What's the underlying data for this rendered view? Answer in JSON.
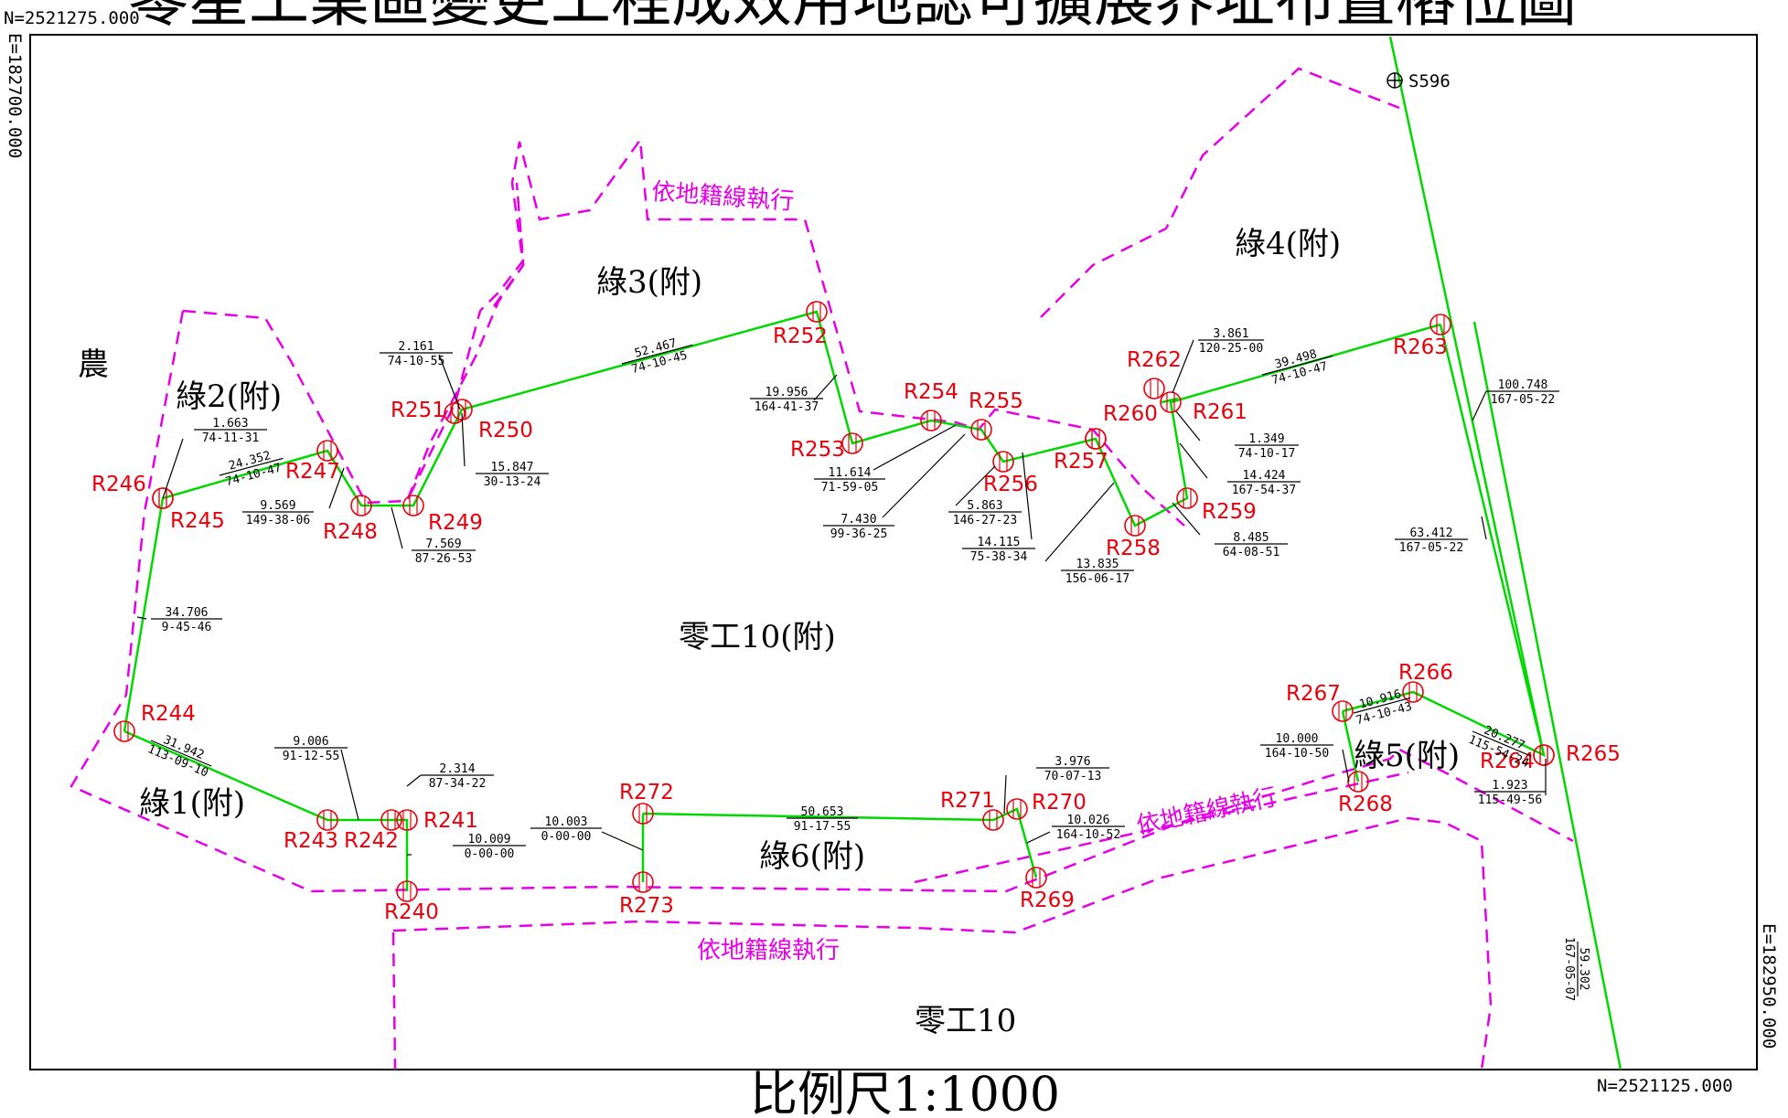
{
  "page_title": "零星工業區變更工程成效用地認可擴展界址布置樁位圖",
  "frame": {
    "north_top": "N=2521275.000",
    "north_bottom": "N=2521125.000",
    "east_left": "E=182700.000",
    "east_right": "E=182950.000"
  },
  "scale_text": "比例尺1:1000",
  "colors": {
    "boundary": "#00d800",
    "cadastral": "#e600e6",
    "station": "#e8000b",
    "frame": "#000000"
  },
  "zones": [
    {
      "id": "z-nong",
      "label": "農"
    },
    {
      "id": "z-green1",
      "label": "綠1(附)"
    },
    {
      "id": "z-green2",
      "label": "綠2(附)"
    },
    {
      "id": "z-green3",
      "label": "綠3(附)"
    },
    {
      "id": "z-green4",
      "label": "綠4(附)"
    },
    {
      "id": "z-green5",
      "label": "綠5(附)"
    },
    {
      "id": "z-green6",
      "label": "綠6(附)"
    },
    {
      "id": "z-ind10a",
      "label": "零工10(附)"
    },
    {
      "id": "z-ind10",
      "label": "零工10"
    }
  ],
  "notes": [
    {
      "id": "n1",
      "text": "依地籍線執行"
    },
    {
      "id": "n2",
      "text": "依地籍線執行"
    },
    {
      "id": "n3",
      "text": "依地籍線執行"
    }
  ],
  "benchmark": {
    "id": "S596",
    "label": "S596"
  },
  "stations": [
    "R240",
    "R241",
    "R242",
    "R243",
    "R244",
    "R245",
    "R246",
    "R247",
    "R248",
    "R249",
    "R250",
    "R251",
    "R252",
    "R253",
    "R254",
    "R255",
    "R256",
    "R257",
    "R258",
    "R259",
    "R260",
    "R261",
    "R262",
    "R263",
    "R264",
    "R265",
    "R266",
    "R267",
    "R268",
    "R269",
    "R270",
    "R271",
    "R272",
    "R273"
  ],
  "measurements": [
    {
      "id": "m1",
      "distance": "1.663",
      "bearing": "74-11-31"
    },
    {
      "id": "m2",
      "distance": "24.352",
      "bearing": "74-10-47"
    },
    {
      "id": "m3",
      "distance": "9.569",
      "bearing": "149-38-06"
    },
    {
      "id": "m4",
      "distance": "7.569",
      "bearing": "87-26-53"
    },
    {
      "id": "m5",
      "distance": "2.161",
      "bearing": "74-10-55"
    },
    {
      "id": "m6",
      "distance": "15.847",
      "bearing": "30-13-24"
    },
    {
      "id": "m7",
      "distance": "52.467",
      "bearing": "74-10-45"
    },
    {
      "id": "m8",
      "distance": "19.956",
      "bearing": "164-41-37"
    },
    {
      "id": "m9",
      "distance": "11.614",
      "bearing": "71-59-05"
    },
    {
      "id": "m10",
      "distance": "7.430",
      "bearing": "99-36-25"
    },
    {
      "id": "m11",
      "distance": "5.863",
      "bearing": "146-27-23"
    },
    {
      "id": "m12",
      "distance": "14.115",
      "bearing": "75-38-34"
    },
    {
      "id": "m13",
      "distance": "13.835",
      "bearing": "156-06-17"
    },
    {
      "id": "m14",
      "distance": "3.861",
      "bearing": "120-25-00"
    },
    {
      "id": "m15",
      "distance": "39.498",
      "bearing": "74-10-47"
    },
    {
      "id": "m16",
      "distance": "1.349",
      "bearing": "74-10-17"
    },
    {
      "id": "m17",
      "distance": "14.424",
      "bearing": "167-54-37"
    },
    {
      "id": "m18",
      "distance": "8.485",
      "bearing": "64-08-51"
    },
    {
      "id": "m19",
      "distance": "100.748",
      "bearing": "167-05-22"
    },
    {
      "id": "m20",
      "distance": "63.412",
      "bearing": "167-05-22"
    },
    {
      "id": "m21",
      "distance": "34.706",
      "bearing": "9-45-46"
    },
    {
      "id": "m22",
      "distance": "31.942",
      "bearing": "113-09-10"
    },
    {
      "id": "m23",
      "distance": "9.006",
      "bearing": "91-12-55"
    },
    {
      "id": "m24",
      "distance": "2.314",
      "bearing": "87-34-22"
    },
    {
      "id": "m25",
      "distance": "10.009",
      "bearing": "0-00-00"
    },
    {
      "id": "m26",
      "distance": "10.003",
      "bearing": "0-00-00"
    },
    {
      "id": "m27",
      "distance": "50.653",
      "bearing": "91-17-55"
    },
    {
      "id": "m28",
      "distance": "3.976",
      "bearing": "70-07-13"
    },
    {
      "id": "m29",
      "distance": "10.026",
      "bearing": "164-10-52"
    },
    {
      "id": "m30",
      "distance": "10.000",
      "bearing": "164-10-50"
    },
    {
      "id": "m31",
      "distance": "10.916",
      "bearing": "74-10-43"
    },
    {
      "id": "m32",
      "distance": "20.277",
      "bearing": "115-54-24"
    },
    {
      "id": "m33",
      "distance": "1.923",
      "bearing": "115-49-56"
    },
    {
      "id": "m34",
      "distance": "59.302",
      "bearing": "167-05-07"
    }
  ]
}
